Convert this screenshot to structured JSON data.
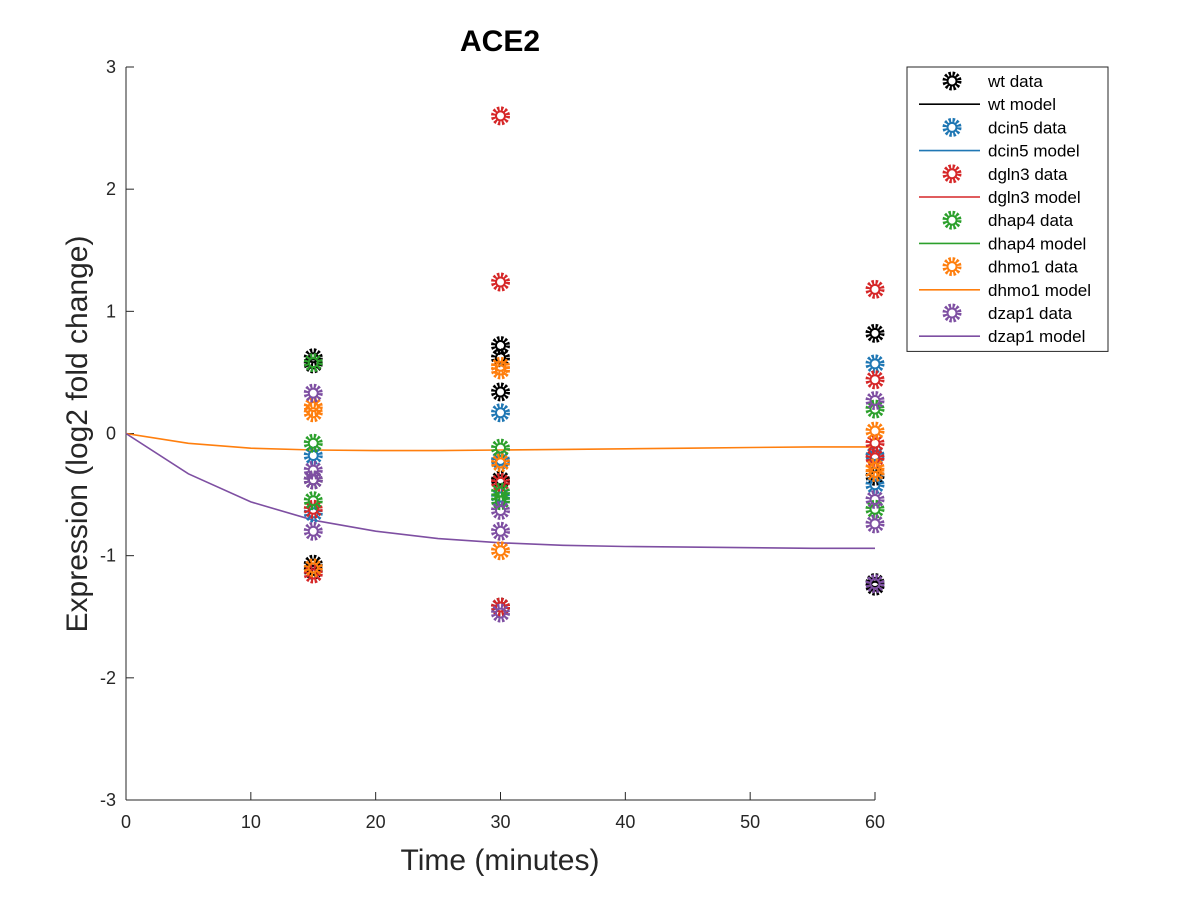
{
  "chart_data": {
    "type": "scatter",
    "title": "ACE2",
    "xlabel": "Time (minutes)",
    "ylabel": "Expression (log2 fold change)",
    "xlim": [
      0,
      60
    ],
    "ylim": [
      -3,
      3
    ],
    "xticks": [
      "0",
      "10",
      "20",
      "30",
      "40",
      "50",
      "60"
    ],
    "yticks": [
      "-3",
      "-2",
      "-1",
      "0",
      "1",
      "2",
      "3"
    ],
    "grid": false,
    "legend_position": "outside-top-right",
    "series": [
      {
        "name": "wt data",
        "kind": "data",
        "color": "#000000",
        "points": [
          [
            15,
            0.62
          ],
          [
            15,
            0.57
          ],
          [
            15,
            -0.38
          ],
          [
            15,
            -1.07
          ],
          [
            15,
            -1.12
          ],
          [
            30,
            0.72
          ],
          [
            30,
            0.62
          ],
          [
            30,
            0.34
          ],
          [
            30,
            -0.38
          ],
          [
            30,
            -1.42
          ],
          [
            60,
            0.82
          ],
          [
            60,
            -0.35
          ],
          [
            60,
            -1.25
          ],
          [
            60,
            -1.22
          ]
        ]
      },
      {
        "name": "wt model",
        "kind": "model",
        "color": "#000000",
        "points": []
      },
      {
        "name": "dcin5 data",
        "kind": "data",
        "color": "#1f77b4",
        "points": [
          [
            15,
            -0.18
          ],
          [
            15,
            -0.65
          ],
          [
            30,
            0.17
          ],
          [
            30,
            -0.52
          ],
          [
            30,
            -0.22
          ],
          [
            60,
            0.57
          ],
          [
            60,
            -0.42
          ],
          [
            60,
            -0.18
          ]
        ]
      },
      {
        "name": "dcin5 model",
        "kind": "model",
        "color": "#1f77b4",
        "points": []
      },
      {
        "name": "dgln3 data",
        "kind": "data",
        "color": "#d62728",
        "points": [
          [
            15,
            -0.62
          ],
          [
            15,
            -1.15
          ],
          [
            30,
            2.6
          ],
          [
            30,
            1.24
          ],
          [
            30,
            -0.4
          ],
          [
            30,
            -1.42
          ],
          [
            60,
            1.18
          ],
          [
            60,
            0.44
          ],
          [
            60,
            -0.08
          ],
          [
            60,
            -0.2
          ]
        ]
      },
      {
        "name": "dgln3 model",
        "kind": "model",
        "color": "#d62728",
        "points": []
      },
      {
        "name": "dhap4 data",
        "kind": "data",
        "color": "#2ca02c",
        "points": [
          [
            15,
            0.58
          ],
          [
            15,
            -0.08
          ],
          [
            15,
            -0.55
          ],
          [
            30,
            -0.12
          ],
          [
            30,
            -0.48
          ],
          [
            30,
            -0.55
          ],
          [
            60,
            0.2
          ],
          [
            60,
            -0.62
          ]
        ]
      },
      {
        "name": "dhap4 model",
        "kind": "model",
        "color": "#2ca02c",
        "points": []
      },
      {
        "name": "dhmo1 data",
        "kind": "data",
        "color": "#ff7f0e",
        "points": [
          [
            15,
            0.22
          ],
          [
            15,
            0.17
          ],
          [
            15,
            -1.1
          ],
          [
            30,
            0.55
          ],
          [
            30,
            0.52
          ],
          [
            30,
            -0.24
          ],
          [
            30,
            -0.96
          ],
          [
            60,
            0.02
          ],
          [
            60,
            -0.28
          ],
          [
            60,
            -0.32
          ]
        ]
      },
      {
        "name": "dhmo1 model",
        "kind": "model",
        "color": "#ff7f0e",
        "points": [
          [
            0,
            0
          ],
          [
            5,
            -0.08
          ],
          [
            10,
            -0.12
          ],
          [
            15,
            -0.135
          ],
          [
            20,
            -0.14
          ],
          [
            25,
            -0.14
          ],
          [
            30,
            -0.135
          ],
          [
            35,
            -0.13
          ],
          [
            40,
            -0.125
          ],
          [
            45,
            -0.12
          ],
          [
            50,
            -0.115
          ],
          [
            55,
            -0.11
          ],
          [
            60,
            -0.11
          ]
        ]
      },
      {
        "name": "dzap1 data",
        "kind": "data",
        "color": "#7e4fa2",
        "points": [
          [
            15,
            0.33
          ],
          [
            15,
            -0.3
          ],
          [
            15,
            -0.38
          ],
          [
            15,
            -0.8
          ],
          [
            30,
            -0.63
          ],
          [
            30,
            -0.8
          ],
          [
            30,
            -1.47
          ],
          [
            60,
            0.27
          ],
          [
            60,
            -0.54
          ],
          [
            60,
            -0.74
          ],
          [
            60,
            -1.23
          ]
        ]
      },
      {
        "name": "dzap1 model",
        "kind": "model",
        "color": "#7e4fa2",
        "points": [
          [
            0,
            0
          ],
          [
            5,
            -0.33
          ],
          [
            10,
            -0.56
          ],
          [
            15,
            -0.71
          ],
          [
            20,
            -0.8
          ],
          [
            25,
            -0.86
          ],
          [
            30,
            -0.895
          ],
          [
            35,
            -0.915
          ],
          [
            40,
            -0.925
          ],
          [
            45,
            -0.93
          ],
          [
            50,
            -0.935
          ],
          [
            55,
            -0.94
          ],
          [
            60,
            -0.94
          ]
        ]
      }
    ]
  }
}
